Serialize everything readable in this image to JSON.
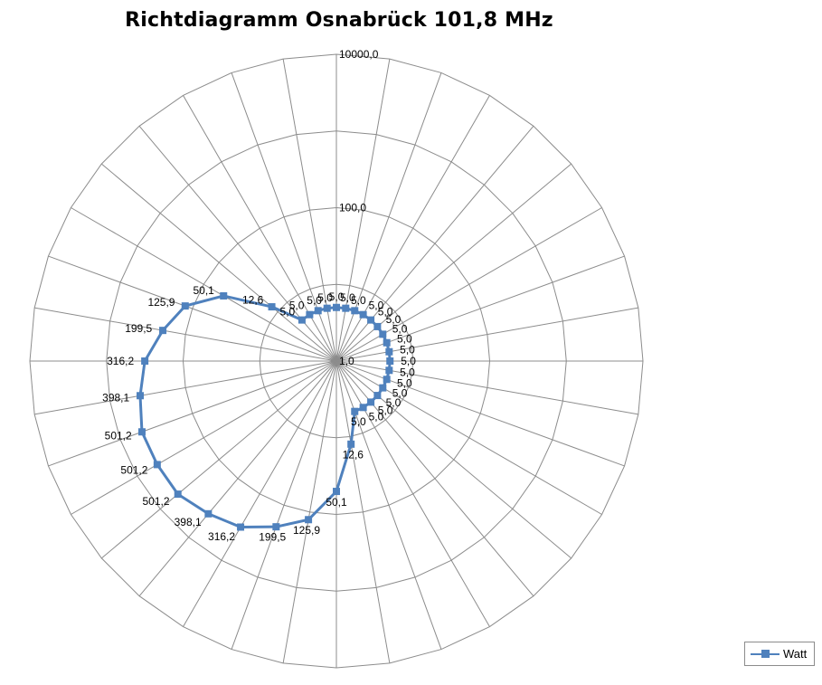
{
  "chart_data": {
    "type": "radar",
    "title": "Richtdiagramm Osnabrück 101,8 MHz",
    "scale": "log",
    "axis_ticks": [
      "1,0",
      "100,0",
      "10000,0"
    ],
    "axis_tick_values": [
      1,
      100,
      10000
    ],
    "r_range": [
      1,
      10000
    ],
    "grid": true,
    "spokes": 36,
    "legend_position": "bottom-right",
    "series": [
      {
        "name": "Watt",
        "color": "#4f81bd",
        "values": [
          5.0,
          5.0,
          5.0,
          5.0,
          5.0,
          5.0,
          5.0,
          5.0,
          5.0,
          5.0,
          5.0,
          5.0,
          5.0,
          5.0,
          5.0,
          5.0,
          5.0,
          12.6,
          50.1,
          125.9,
          199.5,
          316.2,
          398.1,
          501.2,
          501.2,
          501.2,
          398.1,
          316.2,
          199.5,
          125.9,
          50.1,
          12.6,
          5.0,
          5.0,
          5.0,
          5.0
        ],
        "labels": [
          "5,0",
          "5,0",
          "5,0",
          "5,0",
          "5,0",
          "5,0",
          "5,0",
          "5,0",
          "5,0",
          "5,0",
          "5,0",
          "5,0",
          "5,0",
          "5,0",
          "5,0",
          "5,0",
          "5,0",
          "12,6",
          "50,1",
          "125,9",
          "199,5",
          "316,2",
          "398,1",
          "501,2",
          "501,2",
          "501,2",
          "398,1",
          "316,2",
          "199,5",
          "125,9",
          "50,1",
          "12,6",
          "5,0",
          "5,0",
          "5,0",
          "5,0"
        ]
      }
    ]
  }
}
